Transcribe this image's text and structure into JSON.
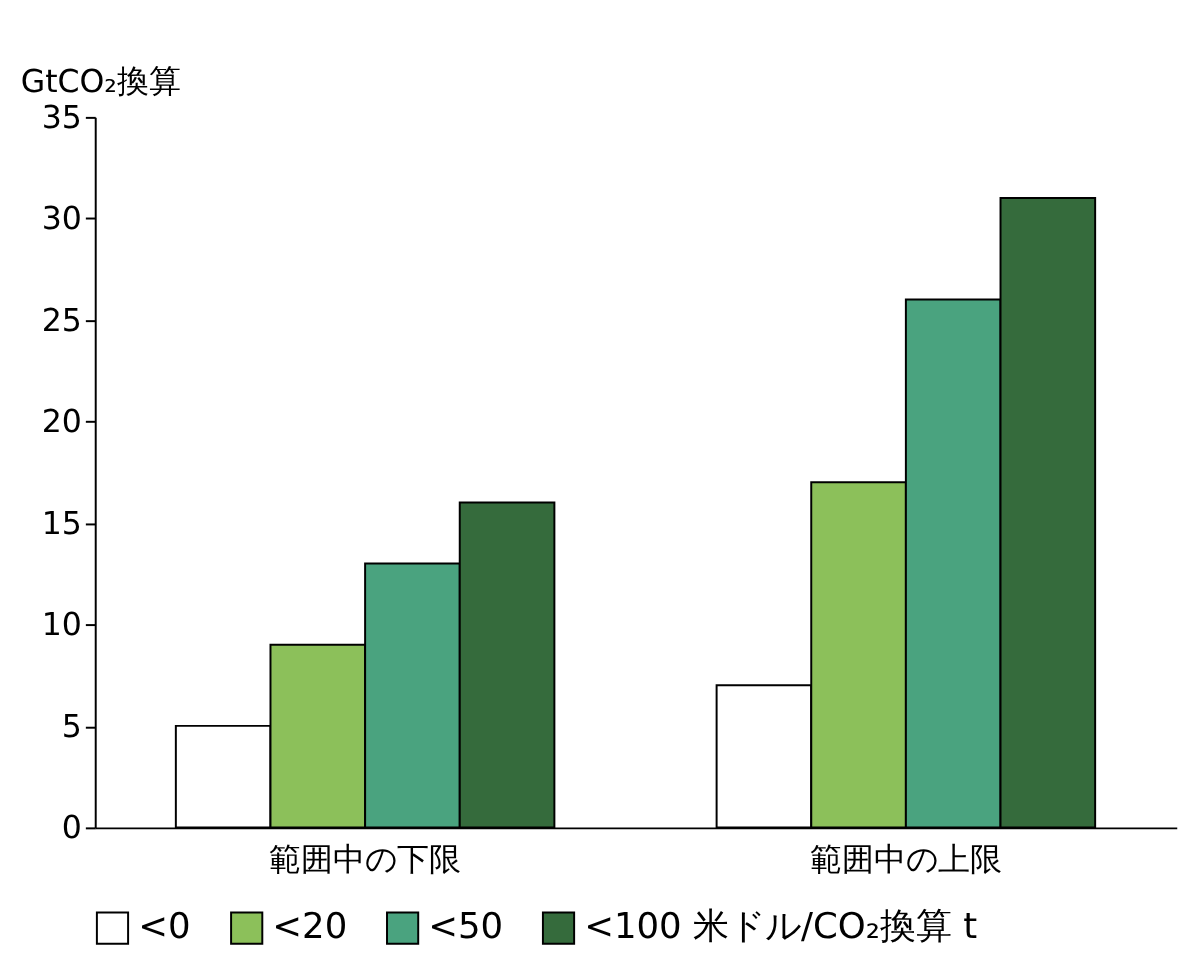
{
  "chart_data": {
    "type": "bar",
    "ylabel": "GtCO₂換算",
    "categories": [
      "範囲中の下限",
      "範囲中の上限"
    ],
    "series": [
      {
        "name": "<0",
        "color": "#ffffff",
        "values": [
          5,
          7
        ]
      },
      {
        "name": "<20",
        "color": "#8cc05a",
        "values": [
          9,
          17
        ]
      },
      {
        "name": "<50",
        "color": "#4aa37f",
        "values": [
          13,
          26
        ]
      },
      {
        "name": "<100 米ドル/CO₂換算 t",
        "color": "#356b3c",
        "values": [
          16,
          31
        ]
      }
    ],
    "ylim": [
      0,
      35
    ],
    "yticks": [
      0,
      5,
      10,
      15,
      20,
      25,
      30,
      35
    ],
    "grid": false,
    "legend": "bottom"
  }
}
